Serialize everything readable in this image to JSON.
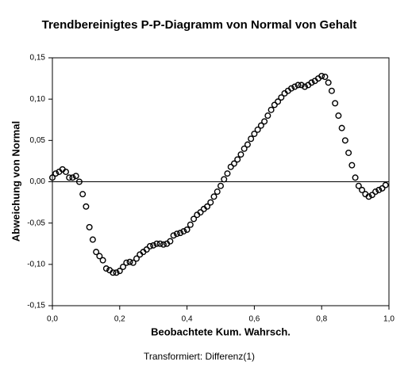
{
  "chart_data": {
    "type": "scatter",
    "title": "Trendbereinigtes P-P-Diagramm von Normal von Gehalt",
    "x_label": "Beobachtete Kum. Wahrsch.",
    "y_label": "Abweichung von Normal",
    "footnote": "Transformiert: Differenz(1)",
    "xlim": [
      0,
      1
    ],
    "ylim": [
      -0.15,
      0.15
    ],
    "xticks": [
      {
        "value": 0,
        "label": "0,0"
      },
      {
        "value": 0.2,
        "label": "0,2"
      },
      {
        "value": 0.4,
        "label": "0,4"
      },
      {
        "value": 0.6,
        "label": "0,6"
      },
      {
        "value": 0.8,
        "label": "0,8"
      },
      {
        "value": 1,
        "label": "1,0"
      }
    ],
    "yticks": [
      {
        "value": -0.15,
        "label": "-0,15"
      },
      {
        "value": -0.1,
        "label": "-0,10"
      },
      {
        "value": -0.05,
        "label": "-0,05"
      },
      {
        "value": 0,
        "label": "0,00"
      },
      {
        "value": 0.05,
        "label": "0,05"
      },
      {
        "value": 0.1,
        "label": "0,10"
      },
      {
        "value": 0.15,
        "label": "0,15"
      }
    ],
    "reference_y": 0,
    "series": [
      {
        "color": "#000000",
        "x": [
          0.0,
          0.01,
          0.02,
          0.03,
          0.04,
          0.05,
          0.06,
          0.07,
          0.08,
          0.09,
          0.1,
          0.11,
          0.12,
          0.13,
          0.14,
          0.15,
          0.16,
          0.17,
          0.18,
          0.19,
          0.2,
          0.21,
          0.22,
          0.23,
          0.24,
          0.25,
          0.26,
          0.27,
          0.28,
          0.29,
          0.3,
          0.31,
          0.32,
          0.33,
          0.34,
          0.35,
          0.36,
          0.37,
          0.38,
          0.39,
          0.4,
          0.41,
          0.42,
          0.43,
          0.44,
          0.45,
          0.46,
          0.47,
          0.48,
          0.49,
          0.5,
          0.51,
          0.52,
          0.53,
          0.54,
          0.55,
          0.56,
          0.57,
          0.58,
          0.59,
          0.6,
          0.61,
          0.62,
          0.63,
          0.64,
          0.65,
          0.66,
          0.67,
          0.68,
          0.69,
          0.7,
          0.71,
          0.72,
          0.73,
          0.74,
          0.75,
          0.76,
          0.77,
          0.78,
          0.79,
          0.8,
          0.81,
          0.82,
          0.83,
          0.84,
          0.85,
          0.86,
          0.87,
          0.88,
          0.89,
          0.9,
          0.91,
          0.92,
          0.93,
          0.94,
          0.95,
          0.96,
          0.97,
          0.98,
          0.99
        ],
        "values": [
          0.005,
          0.01,
          0.012,
          0.015,
          0.012,
          0.005,
          0.005,
          0.007,
          0.0,
          -0.015,
          -0.03,
          -0.055,
          -0.07,
          -0.085,
          -0.09,
          -0.095,
          -0.105,
          -0.107,
          -0.11,
          -0.11,
          -0.108,
          -0.103,
          -0.098,
          -0.097,
          -0.098,
          -0.093,
          -0.088,
          -0.085,
          -0.082,
          -0.078,
          -0.077,
          -0.075,
          -0.075,
          -0.076,
          -0.075,
          -0.072,
          -0.065,
          -0.063,
          -0.062,
          -0.06,
          -0.058,
          -0.052,
          -0.045,
          -0.04,
          -0.037,
          -0.033,
          -0.03,
          -0.025,
          -0.018,
          -0.012,
          -0.005,
          0.003,
          0.01,
          0.018,
          0.022,
          0.027,
          0.033,
          0.04,
          0.045,
          0.052,
          0.058,
          0.063,
          0.068,
          0.073,
          0.08,
          0.087,
          0.093,
          0.097,
          0.102,
          0.107,
          0.11,
          0.113,
          0.115,
          0.117,
          0.117,
          0.115,
          0.117,
          0.12,
          0.122,
          0.125,
          0.128,
          0.127,
          0.12,
          0.11,
          0.095,
          0.08,
          0.065,
          0.05,
          0.035,
          0.02,
          0.005,
          -0.005,
          -0.01,
          -0.015,
          -0.018,
          -0.016,
          -0.012,
          -0.01,
          -0.008,
          -0.004
        ]
      }
    ]
  }
}
